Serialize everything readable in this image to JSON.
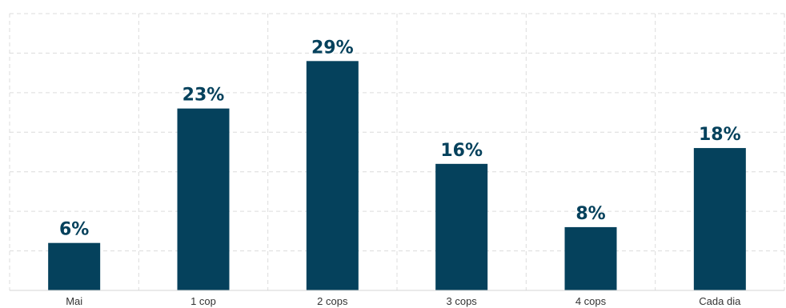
{
  "chart_data": {
    "type": "bar",
    "categories": [
      "Mai",
      "1 cop",
      "2 cops",
      "3 cops",
      "4 cops",
      "Cada dia"
    ],
    "values": [
      6,
      23,
      29,
      16,
      8,
      18
    ],
    "data_labels": [
      "6%",
      "23%",
      "29%",
      "16%",
      "8%",
      "18%"
    ],
    "title": "",
    "xlabel": "",
    "ylabel": "",
    "ylim": [
      0,
      35
    ],
    "grid": true,
    "legend": "none",
    "bar_color": "#05415c",
    "label_color": "#05415c"
  }
}
